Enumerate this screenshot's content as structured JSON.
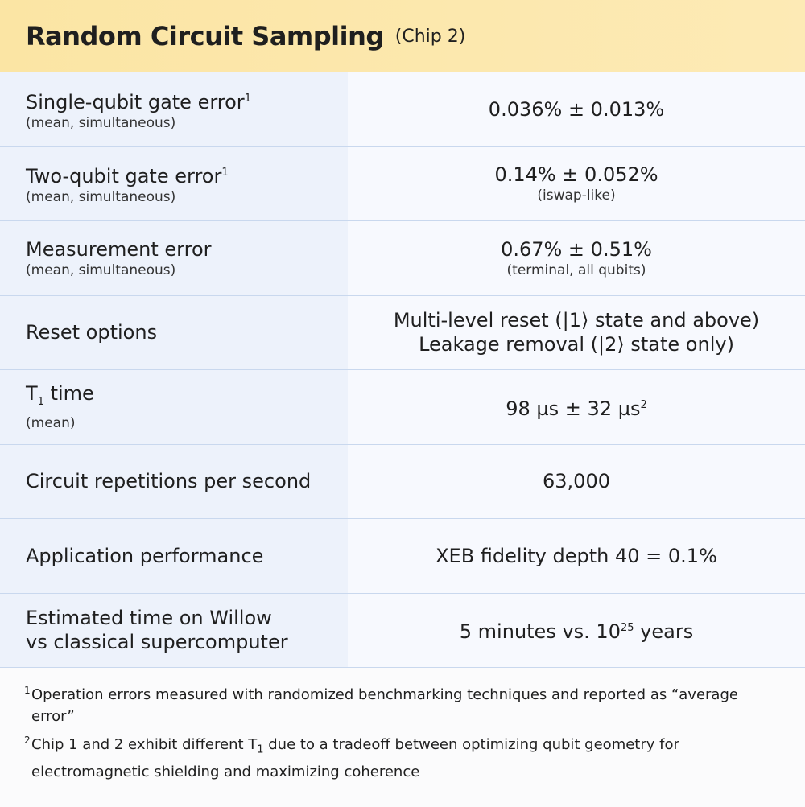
{
  "header": {
    "title": "Random Circuit Sampling",
    "subtitle": "(Chip 2)"
  },
  "table": {
    "rows": [
      {
        "label": "Single-qubit gate error",
        "label_sup": "1",
        "note": "(mean, simultaneous)",
        "value": "0.036% ± 0.013%"
      },
      {
        "label": "Two-qubit gate error",
        "label_sup": "1",
        "note": "(mean, simultaneous)",
        "value": "0.14% ± 0.052%",
        "value_note": "(iswap-like)"
      },
      {
        "label": "Measurement error",
        "note": "(mean, simultaneous)",
        "value": "0.67% ± 0.51%",
        "value_note": "(terminal, all qubits)"
      },
      {
        "label": "Reset options",
        "value_lines": [
          "Multi-level reset (|1⟩ state and above)",
          "Leakage removal (|2⟩ state only)"
        ]
      },
      {
        "label": "T",
        "label_sub": "1",
        "label_after": " time",
        "note": "(mean)",
        "value": "98 µs ± 32 µs",
        "value_sup": "2"
      },
      {
        "label": "Circuit repetitions per second",
        "value": "63,000"
      },
      {
        "label": "Application performance",
        "value": "XEB fidelity depth 40 = 0.1%"
      },
      {
        "label_lines": [
          "Estimated time on Willow",
          "vs classical supercomputer"
        ],
        "value": "5 minutes vs. 10",
        "value_sup": "25",
        "value_after": " years"
      }
    ]
  },
  "footnotes": [
    {
      "mark": "1",
      "text": "Operation errors measured with randomized benchmarking techniques and reported as “average error”"
    },
    {
      "mark": "2",
      "text": "Chip 1 and 2 exhibit different T",
      "sub": "1",
      "after": " due to a tradeoff between optimizing qubit geometry for electromagnetic shielding and maximizing coherence"
    }
  ]
}
